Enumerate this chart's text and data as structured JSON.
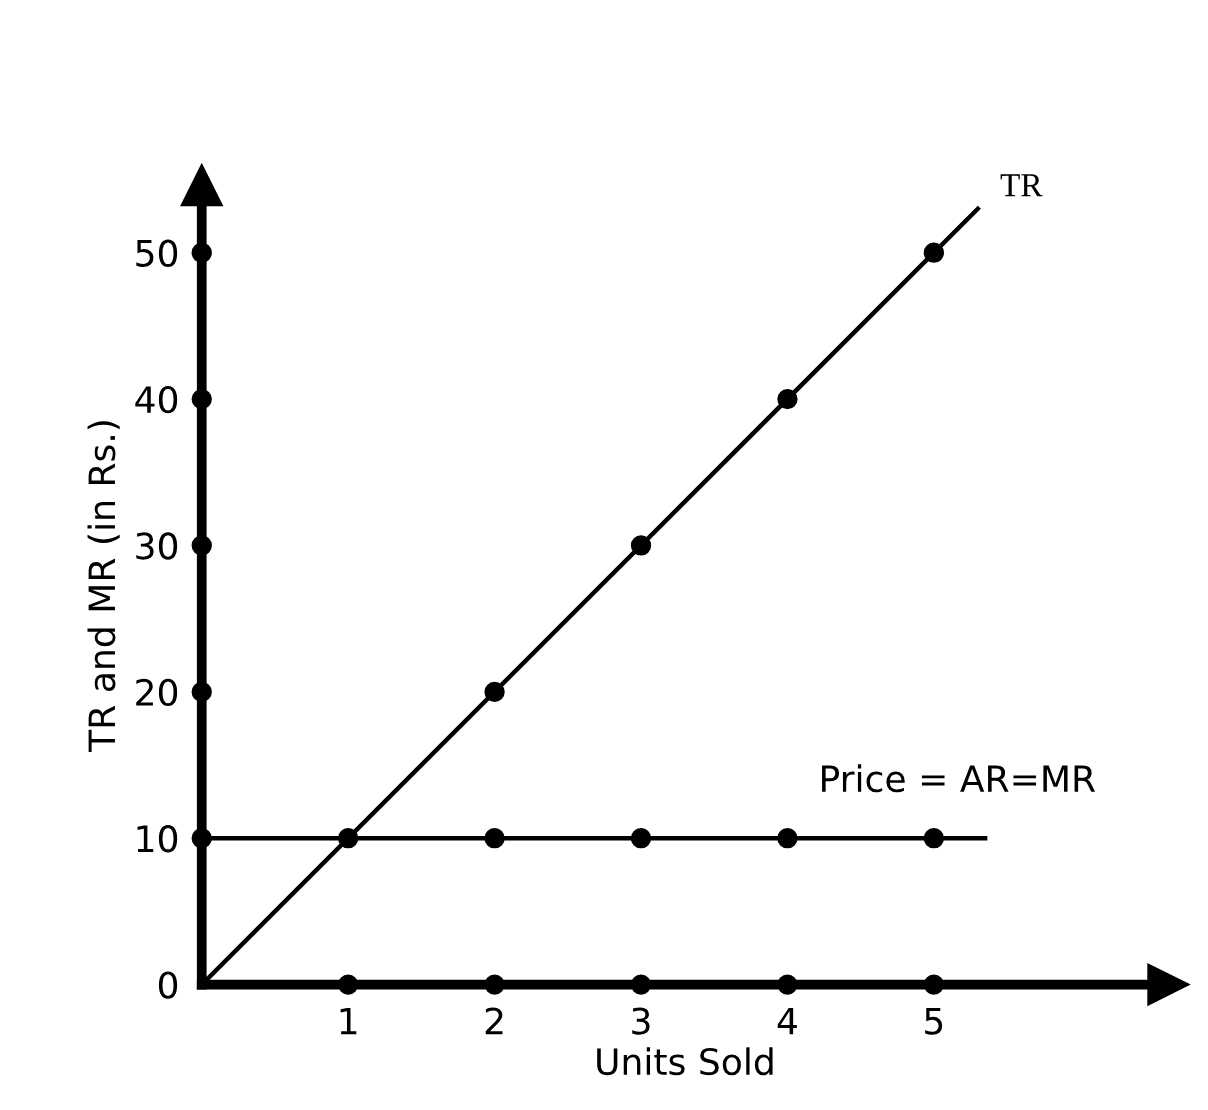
{
  "chart_data": {
    "type": "line",
    "xlabel": "Units Sold",
    "ylabel": "TR and MR (in Rs.)",
    "series": [
      {
        "name": "TR",
        "color": "#000000",
        "x": [
          0,
          5.3
        ],
        "values": [
          0,
          53
        ]
      },
      {
        "type": "scatter",
        "color": "#000000",
        "x": [
          1,
          2,
          3,
          4,
          5
        ],
        "values": [
          10,
          20,
          30,
          40,
          50
        ],
        "marker": "circle"
      },
      {
        "name": "Price = AR=MR",
        "color": "#000000",
        "x": [
          0,
          5.35
        ],
        "values": [
          10,
          10
        ]
      },
      {
        "type": "scatter",
        "color": "#000000",
        "x": [
          2,
          3,
          4,
          5
        ],
        "values": [
          10,
          10,
          10,
          10
        ],
        "marker": "circle"
      },
      {
        "type": "scatter",
        "color": "#000000",
        "x": [
          1,
          2,
          3,
          4,
          5
        ],
        "values": [
          0,
          0,
          0,
          0,
          0
        ],
        "marker": "circle"
      },
      {
        "type": "scatter",
        "color": "#000000",
        "x": [
          0,
          0,
          0,
          0,
          0
        ],
        "values": [
          10,
          20,
          30,
          40,
          50
        ],
        "marker": "circle"
      }
    ],
    "xlim": [
      0,
      6.6
    ],
    "ylim": [
      0,
      54.6
    ],
    "xticks": [
      1,
      2,
      3,
      4,
      5
    ],
    "yticks": [
      0,
      10,
      20,
      30,
      40,
      50
    ],
    "grid": false,
    "legend": false
  }
}
